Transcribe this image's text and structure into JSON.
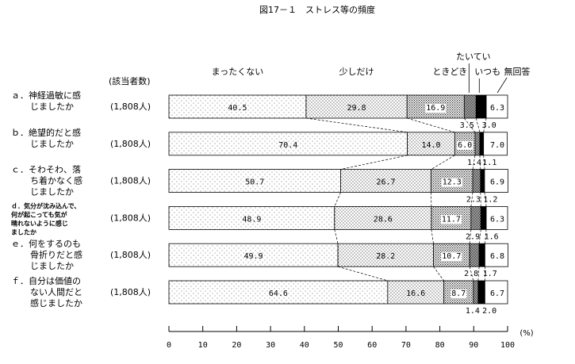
{
  "chart_data": {
    "type": "bar",
    "stacked": true,
    "orientation": "horizontal",
    "title": "図17－１　ストレス等の頻度",
    "count_header": "(該当者数)",
    "series_names": [
      "まったくない",
      "少しだけ",
      "ときどき",
      "たいてい",
      "いつも",
      "無回答"
    ],
    "xlim": [
      0,
      100
    ],
    "xticks": [
      "0",
      "10",
      "20",
      "30",
      "40",
      "50",
      "60",
      "70",
      "80",
      "90",
      "100"
    ],
    "unit": "(%)",
    "categories": [
      {
        "label_lines": [
          "ａ．神経過敏に感",
          "じましたか"
        ],
        "count": "(1,808人)",
        "values": [
          40.5,
          29.8,
          16.9,
          3.5,
          3.0,
          6.3
        ],
        "labels": [
          "40.5",
          "29.8",
          "16.9",
          "3.5",
          "3.0",
          "6.3"
        ]
      },
      {
        "label_lines": [
          "ｂ．絶望的だと感",
          "じましたか"
        ],
        "count": "(1,808人)",
        "values": [
          70.4,
          14.0,
          6.0,
          1.4,
          1.1,
          7.0
        ],
        "labels": [
          "70.4",
          "14.0",
          "6.0",
          "1.4",
          "1.1",
          "7.0"
        ]
      },
      {
        "label_lines": [
          "ｃ．そわそわ、落",
          "ち着かなく感",
          "じましたか"
        ],
        "count": "(1,808人)",
        "values": [
          50.7,
          26.7,
          12.3,
          2.3,
          1.2,
          6.9
        ],
        "labels": [
          "50.7",
          "26.7",
          "12.3",
          "2.3",
          "1.2",
          "6.9"
        ]
      },
      {
        "label_lines": [
          "ｄ．気分が沈み込んで、",
          "何が起こっても気が",
          "晴れないように感じ",
          "ましたか"
        ],
        "count": "(1,808人)",
        "values": [
          48.9,
          28.6,
          11.7,
          2.9,
          1.6,
          6.3
        ],
        "labels": [
          "48.9",
          "28.6",
          "11.7",
          "2.9",
          "1.6",
          "6.3"
        ]
      },
      {
        "label_lines": [
          "ｅ．何をするのも",
          "骨折りだと感",
          "じましたか"
        ],
        "count": "(1,808人)",
        "values": [
          49.9,
          28.2,
          10.7,
          2.8,
          1.7,
          6.8
        ],
        "labels": [
          "49.9",
          "28.2",
          "10.7",
          "2.8",
          "1.7",
          "6.8"
        ]
      },
      {
        "label_lines": [
          "ｆ．自分は価値の",
          "ない人間だと",
          "感じましたか"
        ],
        "count": "(1,808人)",
        "values": [
          64.6,
          16.6,
          8.7,
          1.4,
          2.0,
          6.7
        ],
        "labels": [
          "64.6",
          "16.6",
          "8.7",
          "1.4",
          "2.0",
          "6.7"
        ]
      }
    ]
  }
}
